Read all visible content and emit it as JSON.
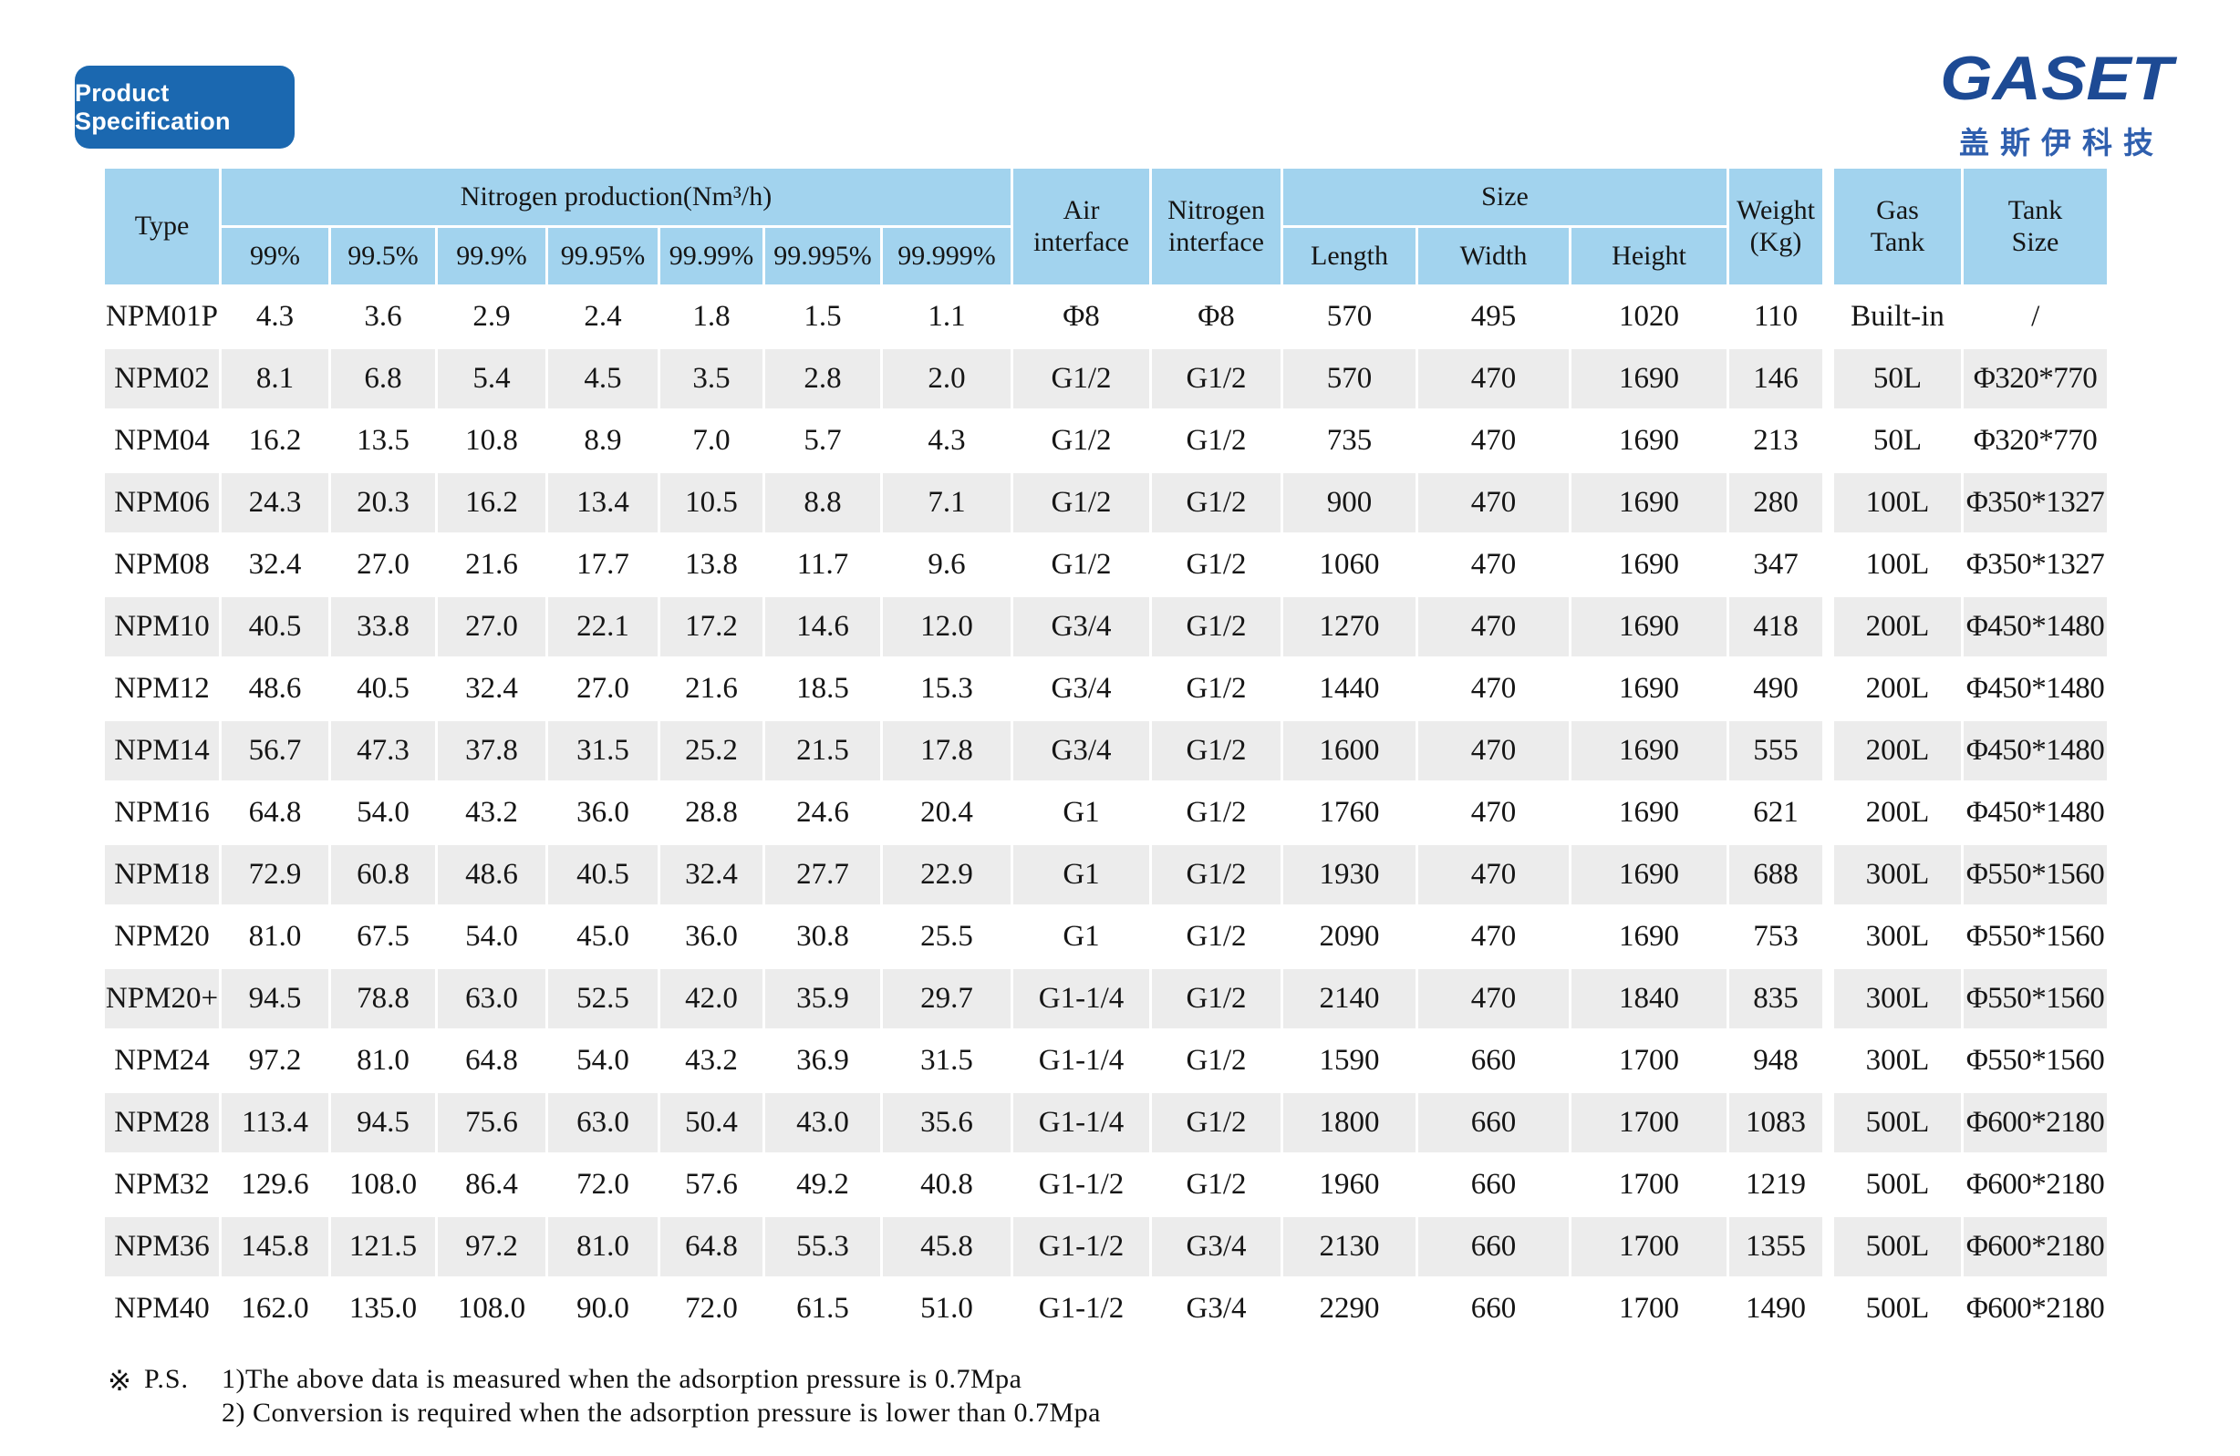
{
  "page": {
    "badge_label": "Product Specification",
    "logo": {
      "wordmark": "GASET",
      "subtitle": "盖斯伊科技"
    }
  },
  "colors": {
    "badge_blue": "#1b68b0",
    "logo_navy": "#1d4a94",
    "header_blue": "#a2d3ee",
    "row_gray": "#ececec"
  },
  "table": {
    "headers": {
      "type": "Type",
      "nitrogen_production": "Nitrogen production(Nm³/h)",
      "purity_levels": [
        "99%",
        "99.5%",
        "99.9%",
        "99.95%",
        "99.99%",
        "99.995%",
        "99.999%"
      ],
      "air_line1": "Air",
      "air_line2": "interface",
      "nitrogen_line1": "Nitrogen",
      "nitrogen_line2": "interface",
      "size": "Size",
      "length": "Length",
      "width": "Width",
      "height": "Height",
      "weight_line1": "Weight",
      "weight_line2": "(Kg)",
      "gas_line1": "Gas",
      "gas_line2": "Tank",
      "tank_line1": "Tank",
      "tank_line2": "Size"
    },
    "column_keys": [
      "type",
      "p99",
      "p99_5",
      "p99_9",
      "p99_95",
      "p99_99",
      "p99_995",
      "p99_999",
      "air_interface",
      "nitrogen_interface",
      "length",
      "width",
      "height",
      "weight",
      "gas_tank",
      "tank_size"
    ],
    "rows": [
      [
        "NPM01P",
        "4.3",
        "3.6",
        "2.9",
        "2.4",
        "1.8",
        "1.5",
        "1.1",
        "Φ8",
        "Φ8",
        "570",
        "495",
        "1020",
        "110",
        "Built-in",
        "/"
      ],
      [
        "NPM02",
        "8.1",
        "6.8",
        "5.4",
        "4.5",
        "3.5",
        "2.8",
        "2.0",
        "G1/2",
        "G1/2",
        "570",
        "470",
        "1690",
        "146",
        "50L",
        "Φ320*770"
      ],
      [
        "NPM04",
        "16.2",
        "13.5",
        "10.8",
        "8.9",
        "7.0",
        "5.7",
        "4.3",
        "G1/2",
        "G1/2",
        "735",
        "470",
        "1690",
        "213",
        "50L",
        "Φ320*770"
      ],
      [
        "NPM06",
        "24.3",
        "20.3",
        "16.2",
        "13.4",
        "10.5",
        "8.8",
        "7.1",
        "G1/2",
        "G1/2",
        "900",
        "470",
        "1690",
        "280",
        "100L",
        "Φ350*1327"
      ],
      [
        "NPM08",
        "32.4",
        "27.0",
        "21.6",
        "17.7",
        "13.8",
        "11.7",
        "9.6",
        "G1/2",
        "G1/2",
        "1060",
        "470",
        "1690",
        "347",
        "100L",
        "Φ350*1327"
      ],
      [
        "NPM10",
        "40.5",
        "33.8",
        "27.0",
        "22.1",
        "17.2",
        "14.6",
        "12.0",
        "G3/4",
        "G1/2",
        "1270",
        "470",
        "1690",
        "418",
        "200L",
        "Φ450*1480"
      ],
      [
        "NPM12",
        "48.6",
        "40.5",
        "32.4",
        "27.0",
        "21.6",
        "18.5",
        "15.3",
        "G3/4",
        "G1/2",
        "1440",
        "470",
        "1690",
        "490",
        "200L",
        "Φ450*1480"
      ],
      [
        "NPM14",
        "56.7",
        "47.3",
        "37.8",
        "31.5",
        "25.2",
        "21.5",
        "17.8",
        "G3/4",
        "G1/2",
        "1600",
        "470",
        "1690",
        "555",
        "200L",
        "Φ450*1480"
      ],
      [
        "NPM16",
        "64.8",
        "54.0",
        "43.2",
        "36.0",
        "28.8",
        "24.6",
        "20.4",
        "G1",
        "G1/2",
        "1760",
        "470",
        "1690",
        "621",
        "200L",
        "Φ450*1480"
      ],
      [
        "NPM18",
        "72.9",
        "60.8",
        "48.6",
        "40.5",
        "32.4",
        "27.7",
        "22.9",
        "G1",
        "G1/2",
        "1930",
        "470",
        "1690",
        "688",
        "300L",
        "Φ550*1560"
      ],
      [
        "NPM20",
        "81.0",
        "67.5",
        "54.0",
        "45.0",
        "36.0",
        "30.8",
        "25.5",
        "G1",
        "G1/2",
        "2090",
        "470",
        "1690",
        "753",
        "300L",
        "Φ550*1560"
      ],
      [
        "NPM20+",
        "94.5",
        "78.8",
        "63.0",
        "52.5",
        "42.0",
        "35.9",
        "29.7",
        "G1-1/4",
        "G1/2",
        "2140",
        "470",
        "1840",
        "835",
        "300L",
        "Φ550*1560"
      ],
      [
        "NPM24",
        "97.2",
        "81.0",
        "64.8",
        "54.0",
        "43.2",
        "36.9",
        "31.5",
        "G1-1/4",
        "G1/2",
        "1590",
        "660",
        "1700",
        "948",
        "300L",
        "Φ550*1560"
      ],
      [
        "NPM28",
        "113.4",
        "94.5",
        "75.6",
        "63.0",
        "50.4",
        "43.0",
        "35.6",
        "G1-1/4",
        "G1/2",
        "1800",
        "660",
        "1700",
        "1083",
        "500L",
        "Φ600*2180"
      ],
      [
        "NPM32",
        "129.6",
        "108.0",
        "86.4",
        "72.0",
        "57.6",
        "49.2",
        "40.8",
        "G1-1/2",
        "G1/2",
        "1960",
        "660",
        "1700",
        "1219",
        "500L",
        "Φ600*2180"
      ],
      [
        "NPM36",
        "145.8",
        "121.5",
        "97.2",
        "81.0",
        "64.8",
        "55.3",
        "45.8",
        "G1-1/2",
        "G3/4",
        "2130",
        "660",
        "1700",
        "1355",
        "500L",
        "Φ600*2180"
      ],
      [
        "NPM40",
        "162.0",
        "135.0",
        "108.0",
        "90.0",
        "72.0",
        "61.5",
        "51.0",
        "G1-1/2",
        "G3/4",
        "2290",
        "660",
        "1700",
        "1490",
        "500L",
        "Φ600*2180"
      ]
    ]
  },
  "notes": {
    "marker": "※",
    "label": "P.S.",
    "line1": "1)The above data is measured when the adsorption pressure is 0.7Mpa",
    "line2": "2) Conversion is required when the adsorption pressure is lower than 0.7Mpa"
  }
}
